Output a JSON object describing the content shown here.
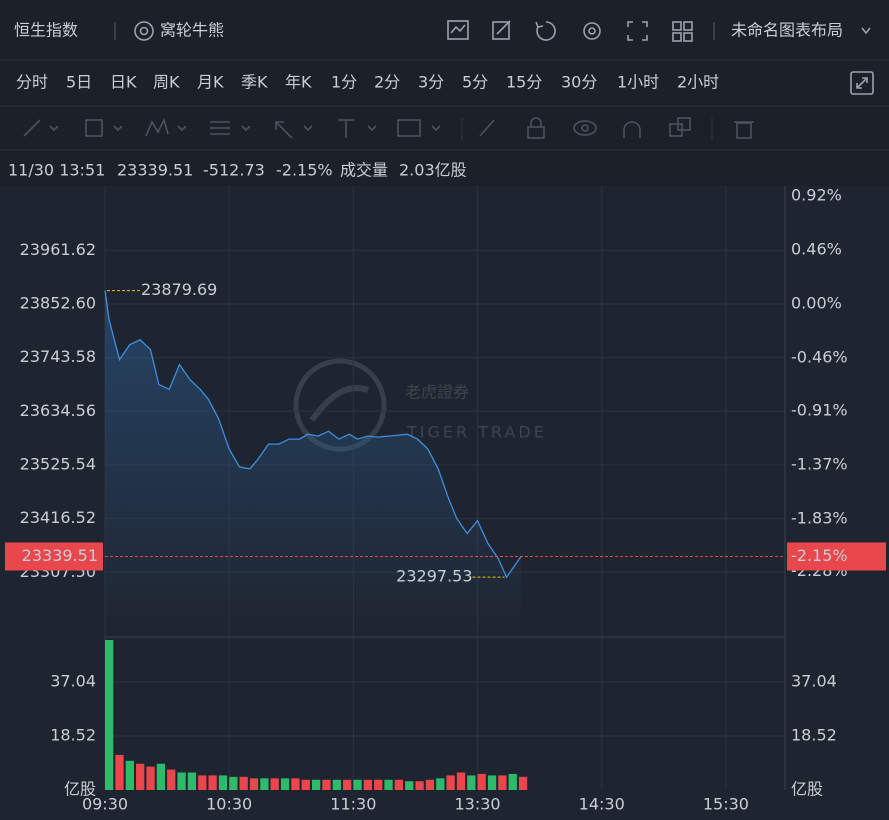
{
  "header": {
    "title": "恒生指数",
    "warrants": "窝轮牛熊",
    "layout": "未命名图表布局"
  },
  "periods": [
    "分时",
    "5日",
    "日K",
    "周K",
    "月K",
    "季K",
    "年K",
    "1分",
    "2分",
    "3分",
    "5分",
    "15分",
    "30分",
    "1小时",
    "2小时"
  ],
  "info": {
    "time": "11/30 13:51",
    "price": "23339.51",
    "change": "-512.73",
    "change_pct": "-2.15%",
    "volume_label": "成交量",
    "volume": "2.03亿股"
  },
  "watermark": {
    "cn": "老虎證券",
    "en": "TIGER TRADE"
  },
  "chart_data": [
    {
      "type": "line",
      "color": "#3d8fe0",
      "x": [
        0,
        2,
        7,
        12,
        17,
        22,
        26,
        31,
        36,
        41,
        46,
        50,
        55,
        60,
        65,
        70,
        74,
        79,
        84,
        89,
        94,
        98,
        103,
        108,
        113,
        118,
        122,
        127,
        132,
        137,
        142,
        146,
        151,
        156,
        161,
        166,
        170,
        175,
        180,
        185,
        190,
        194,
        201
      ],
      "values": [
        23879.69,
        23820.3,
        23739.5,
        23769.8,
        23779.9,
        23759.7,
        23689.1,
        23679.0,
        23729.4,
        23699.2,
        23679.0,
        23658.8,
        23618.4,
        23557.8,
        23521.5,
        23517.4,
        23537.6,
        23567.9,
        23567.9,
        23578.0,
        23578.0,
        23588.1,
        23584.1,
        23594.2,
        23578.0,
        23588.1,
        23578.0,
        23584.1,
        23582.1,
        23584.1,
        23586.1,
        23588.1,
        23578.0,
        23557.8,
        23517.4,
        23456.9,
        23416.5,
        23386.2,
        23412.5,
        23366.0,
        23335.7,
        23297.53,
        23339.51
      ],
      "xlim": [
        0,
        330
      ],
      "xticks": [
        {
          "value": 0,
          "label": "09:30"
        },
        {
          "value": 60,
          "label": "10:30"
        },
        {
          "value": 120,
          "label": "11:30"
        },
        {
          "value": 180,
          "label": "13:30"
        },
        {
          "value": 240,
          "label": "14:30"
        },
        {
          "value": 300,
          "label": "15:30"
        }
      ],
      "ylim": [
        23180,
        24072
      ],
      "yticks": [
        23961.62,
        {
          "value": 23852.6,
          "label": "23852.60"
        },
        23743.58,
        23634.56,
        23525.54,
        23416.52,
        {
          "value": 23307.5,
          "label": "23307.50"
        }
      ],
      "y2lim": [
        -2.82,
        0.92
      ],
      "y2ticks": [
        {
          "value": 0.92,
          "label": "0.92%"
        },
        {
          "value": 0.46,
          "label": "0.46%"
        },
        {
          "value": 0,
          "label": "0.00%"
        },
        {
          "value": -0.46,
          "label": "-0.46%"
        },
        {
          "value": -0.91,
          "label": "-0.91%"
        },
        {
          "value": -1.37,
          "label": "-1.37%"
        },
        {
          "value": -1.83,
          "label": "-1.83%"
        },
        {
          "value": -2.28,
          "label": "-2.28%"
        }
      ],
      "grid": true,
      "up_color": "#2fb96b",
      "down_color": "#e9474b",
      "marker_color": "#e8c31a",
      "high": {
        "x": 0,
        "value": 23879.69
      },
      "low": {
        "x": 194,
        "value": 23297.53
      },
      "current": 23339.51,
      "current_pct": {
        "value": -2.15,
        "label": "-2.15%"
      }
    },
    {
      "type": "bar",
      "x": [
        0,
        5,
        10,
        15,
        20,
        25,
        30,
        35,
        40,
        45,
        50,
        55,
        60,
        65,
        70,
        75,
        80,
        85,
        90,
        95,
        100,
        105,
        110,
        115,
        120,
        125,
        130,
        135,
        140,
        145,
        150,
        155,
        160,
        165,
        170,
        175,
        180,
        185,
        190,
        195,
        200
      ],
      "values": [
        51.4,
        12,
        10,
        9,
        8,
        9,
        7,
        6,
        6,
        5,
        5,
        5,
        4.5,
        4.5,
        4,
        4,
        4,
        4,
        4,
        3.5,
        3.5,
        3.5,
        3.5,
        3.5,
        3.5,
        3.5,
        3.5,
        3.5,
        3.5,
        3,
        3,
        3.5,
        4,
        5,
        6,
        5,
        5.5,
        5,
        5,
        5.5,
        4.5
      ],
      "colors": [
        "#2fb96b",
        "#e9474b",
        "#2fb96b",
        "#e9474b",
        "#e9474b",
        "#2fb96b",
        "#e9474b",
        "#2fb96b",
        "#2fb96b",
        "#e9474b",
        "#e9474b",
        "#2fb96b",
        "#2fb96b",
        "#e9474b",
        "#e9474b",
        "#2fb96b",
        "#e9474b",
        "#2fb96b",
        "#e9474b",
        "#e9474b",
        "#2fb96b",
        "#e9474b",
        "#2fb96b",
        "#e9474b",
        "#2fb96b",
        "#e9474b",
        "#e9474b",
        "#2fb96b",
        "#e9474b",
        "#2fb96b",
        "#e9474b",
        "#e9474b",
        "#2fb96b",
        "#e9474b",
        "#e9474b",
        "#2fb96b",
        "#e9474b",
        "#2fb96b",
        "#e9474b",
        "#2fb96b",
        "#e9474b"
      ],
      "xlim": [
        0,
        330
      ],
      "ylim": [
        0,
        51.4
      ],
      "yticks": [
        18.52,
        37.04
      ],
      "unit_label": "亿股"
    }
  ]
}
